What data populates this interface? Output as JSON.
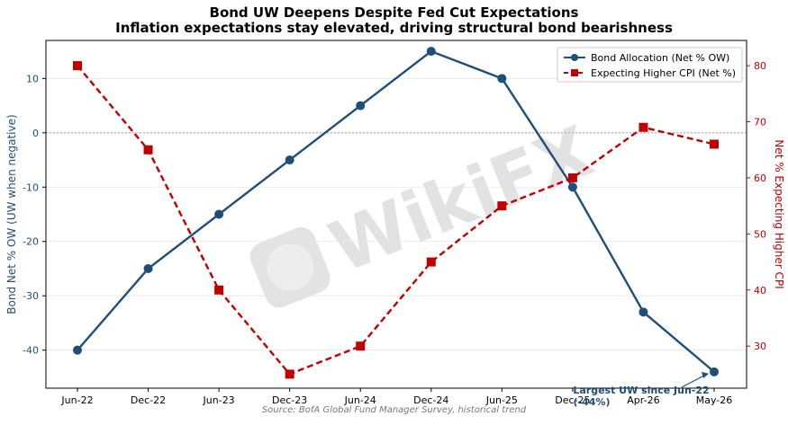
{
  "chart_data": {
    "type": "line",
    "title": "Bond UW Deepens Despite Fed Cut Expectations",
    "subtitle": "Inflation expectations stay elevated, driving structural bond bearishness",
    "categories": [
      "Jun-22",
      "Dec-22",
      "Jun-23",
      "Dec-23",
      "Jun-24",
      "Dec-24",
      "Jun-25",
      "Dec-25",
      "Apr-26",
      "May-26"
    ],
    "series": [
      {
        "name": "Bond Allocation (Net % OW)",
        "axis": "left",
        "color": "#1f4e79",
        "marker": "circle",
        "line_style": "solid",
        "values": [
          -40,
          -25,
          -15,
          -5,
          5,
          15,
          10,
          -10,
          -33,
          -44
        ]
      },
      {
        "name": "Expecting Higher CPI (Net %)",
        "axis": "right",
        "color": "#c00000",
        "marker": "square",
        "line_style": "dashed",
        "values": [
          80,
          65,
          40,
          25,
          30,
          45,
          55,
          60,
          69,
          66
        ]
      }
    ],
    "ylabel": "Bond Net % OW (UW when negative)",
    "ylabel_right": "Net % Expecting Higher CPI",
    "ylim": [
      -47,
      17
    ],
    "yticks": [
      -40,
      -30,
      -20,
      -10,
      0,
      10
    ],
    "ylim_right": [
      22.5,
      84.5
    ],
    "yticks_right": [
      30,
      40,
      50,
      60,
      70,
      80
    ],
    "zero_line": true,
    "grid": "horizontal",
    "legend": "top-right",
    "annotation": {
      "text": "Largest UW since Jun-22 (-44%)",
      "point_category": "May-26",
      "point_value": -44
    },
    "source": "Source: BofA Global Fund Manager Survey, historical trend",
    "watermark": "WikiFX"
  }
}
